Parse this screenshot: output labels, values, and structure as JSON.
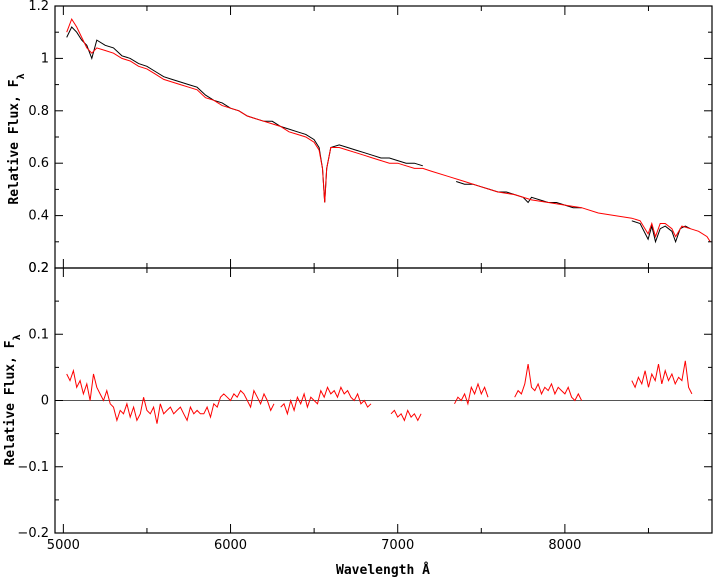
{
  "chart_data": [
    {
      "type": "line",
      "panel": "top",
      "ylabel": "Relative Flux, F",
      "ylabel_subscript": "λ",
      "xlim": [
        4950,
        8880
      ],
      "ylim": [
        0.2,
        1.2
      ],
      "yticks": [
        0.2,
        0.4,
        0.6,
        0.8,
        1.0,
        1.2
      ],
      "ytick_labels": [
        "0.2",
        "0.4",
        "0.6",
        "0.8",
        "1",
        "1.2"
      ],
      "series": [
        {
          "color": "#000000",
          "x": [
            5020,
            5050,
            5080,
            5110,
            5140,
            5170,
            5200,
            5250,
            5300,
            5350,
            5400,
            5450,
            5500,
            5550,
            5600,
            5650,
            5700,
            5750,
            5800,
            5850,
            5900,
            5950,
            6000,
            6050,
            6100,
            6150,
            6200,
            6250,
            6300,
            6350,
            6400,
            6450,
            6500,
            6530,
            6550,
            6563,
            6575,
            6600,
            6650,
            6700,
            6750,
            6800,
            6850,
            6900,
            6950,
            7000,
            7050,
            7100,
            7150
          ],
          "y": [
            1.08,
            1.12,
            1.1,
            1.07,
            1.05,
            1.0,
            1.07,
            1.05,
            1.04,
            1.01,
            1.0,
            0.98,
            0.97,
            0.95,
            0.93,
            0.92,
            0.91,
            0.9,
            0.89,
            0.86,
            0.84,
            0.83,
            0.81,
            0.8,
            0.78,
            0.77,
            0.76,
            0.76,
            0.74,
            0.73,
            0.72,
            0.71,
            0.69,
            0.66,
            0.58,
            0.45,
            0.58,
            0.66,
            0.67,
            0.66,
            0.65,
            0.64,
            0.63,
            0.62,
            0.62,
            0.61,
            0.6,
            0.6,
            0.59
          ]
        },
        {
          "color": "#000000",
          "x": [
            7350,
            7400,
            7450,
            7500,
            7550,
            7600,
            7650,
            7700,
            7750,
            7780,
            7800,
            7850,
            7900,
            7950,
            8000,
            8050,
            8100
          ],
          "y": [
            0.53,
            0.52,
            0.52,
            0.51,
            0.5,
            0.49,
            0.49,
            0.48,
            0.47,
            0.45,
            0.47,
            0.46,
            0.45,
            0.45,
            0.44,
            0.43,
            0.43
          ]
        },
        {
          "color": "#000000",
          "x": [
            8400,
            8450,
            8498,
            8520,
            8542,
            8570,
            8600,
            8640,
            8662,
            8690,
            8720,
            8750
          ],
          "y": [
            0.38,
            0.37,
            0.31,
            0.36,
            0.3,
            0.35,
            0.36,
            0.34,
            0.3,
            0.35,
            0.36,
            0.35
          ]
        },
        {
          "color": "#ff0000",
          "x": [
            5020,
            5050,
            5080,
            5110,
            5140,
            5170,
            5200,
            5250,
            5300,
            5350,
            5400,
            5450,
            5500,
            5550,
            5600,
            5650,
            5700,
            5750,
            5800,
            5850,
            5900,
            5950,
            6000,
            6050,
            6100,
            6150,
            6200,
            6250,
            6300,
            6350,
            6400,
            6450,
            6500,
            6530,
            6550,
            6563,
            6575,
            6600,
            6650,
            6700,
            6750,
            6800,
            6850,
            6900,
            6950,
            7000,
            7050,
            7100,
            7150,
            7200,
            7300,
            7400,
            7500,
            7600,
            7700,
            7800,
            7900,
            8000,
            8100,
            8200,
            8300,
            8400,
            8450,
            8498,
            8520,
            8542,
            8570,
            8600,
            8640,
            8662,
            8700,
            8750,
            8800,
            8850,
            8870
          ],
          "y": [
            1.1,
            1.15,
            1.12,
            1.08,
            1.04,
            1.02,
            1.04,
            1.03,
            1.02,
            1.0,
            0.99,
            0.97,
            0.96,
            0.94,
            0.92,
            0.91,
            0.9,
            0.89,
            0.88,
            0.85,
            0.84,
            0.82,
            0.81,
            0.8,
            0.78,
            0.77,
            0.76,
            0.75,
            0.74,
            0.72,
            0.71,
            0.7,
            0.68,
            0.65,
            0.58,
            0.45,
            0.58,
            0.66,
            0.66,
            0.65,
            0.64,
            0.63,
            0.62,
            0.61,
            0.6,
            0.6,
            0.59,
            0.58,
            0.58,
            0.57,
            0.55,
            0.53,
            0.51,
            0.49,
            0.48,
            0.46,
            0.45,
            0.44,
            0.43,
            0.41,
            0.4,
            0.39,
            0.38,
            0.33,
            0.37,
            0.32,
            0.37,
            0.37,
            0.35,
            0.32,
            0.36,
            0.35,
            0.34,
            0.32,
            0.3
          ]
        }
      ]
    },
    {
      "type": "line",
      "panel": "bottom",
      "xlabel": "Wavelength Å",
      "ylabel": "Relative Flux, F",
      "ylabel_subscript": "λ",
      "xlim": [
        4950,
        8880
      ],
      "ylim": [
        -0.2,
        0.2
      ],
      "xticks": [
        5000,
        6000,
        7000,
        8000
      ],
      "xtick_labels": [
        "5000",
        "6000",
        "7000",
        "8000"
      ],
      "yticks": [
        -0.2,
        -0.1,
        0,
        0.1,
        0.2
      ],
      "ytick_labels": [
        "−0.2",
        "−0.1",
        "0",
        "0.1",
        "0.2"
      ],
      "reference_line": 0,
      "series": [
        {
          "color": "#ff0000",
          "x": [
            5020,
            5040,
            5060,
            5080,
            5100,
            5120,
            5140,
            5160,
            5180,
            5200,
            5220,
            5240,
            5260,
            5280,
            5300,
            5320,
            5340,
            5360,
            5380,
            5400,
            5420,
            5440,
            5460,
            5480,
            5500,
            5520,
            5540,
            5560,
            5580,
            5600,
            5620,
            5640,
            5660,
            5680,
            5700,
            5720,
            5740,
            5760,
            5780,
            5800,
            5820,
            5840,
            5860,
            5880,
            5900,
            5920,
            5940,
            5960,
            5980,
            6000,
            6020,
            6040,
            6060,
            6080,
            6100,
            6120,
            6140,
            6160,
            6180,
            6200,
            6220,
            6240,
            6260
          ],
          "y": [
            0.04,
            0.03,
            0.045,
            0.02,
            0.03,
            0.01,
            0.025,
            0.0,
            0.04,
            0.02,
            0.01,
            0.0,
            0.015,
            -0.005,
            -0.01,
            -0.03,
            -0.015,
            -0.02,
            -0.005,
            -0.025,
            -0.01,
            -0.03,
            -0.02,
            0.005,
            -0.015,
            -0.02,
            -0.01,
            -0.035,
            -0.005,
            -0.02,
            -0.015,
            -0.01,
            -0.02,
            -0.015,
            -0.01,
            -0.02,
            -0.03,
            -0.01,
            -0.02,
            -0.015,
            -0.02,
            -0.02,
            -0.01,
            -0.025,
            -0.005,
            -0.01,
            0.005,
            0.01,
            0.005,
            0.0,
            0.01,
            0.005,
            0.015,
            0.01,
            0.0,
            -0.01,
            0.015,
            0.005,
            -0.005,
            0.01,
            0.0,
            -0.015,
            -0.005
          ]
        },
        {
          "color": "#ff0000",
          "x": [
            6300,
            6320,
            6340,
            6360,
            6380,
            6400,
            6420,
            6440,
            6460,
            6480,
            6500,
            6520,
            6540,
            6560,
            6580,
            6600,
            6620,
            6640,
            6660,
            6680,
            6700,
            6720,
            6740,
            6760,
            6780,
            6800,
            6820,
            6840
          ],
          "y": [
            -0.01,
            -0.005,
            -0.02,
            0.0,
            -0.015,
            0.005,
            -0.005,
            0.01,
            -0.01,
            0.005,
            0.0,
            -0.005,
            0.015,
            0.005,
            0.02,
            0.01,
            0.015,
            0.005,
            0.02,
            0.01,
            0.015,
            0.005,
            0.0,
            0.01,
            -0.005,
            0.0,
            -0.01,
            -0.005
          ]
        },
        {
          "color": "#ff0000",
          "x": [
            6960,
            6980,
            7000,
            7020,
            7040,
            7060,
            7080,
            7100,
            7120,
            7140
          ],
          "y": [
            -0.02,
            -0.015,
            -0.025,
            -0.02,
            -0.03,
            -0.015,
            -0.025,
            -0.02,
            -0.03,
            -0.02
          ]
        },
        {
          "color": "#ff0000",
          "x": [
            7340,
            7360,
            7380,
            7400,
            7420,
            7440,
            7460,
            7480,
            7500,
            7520,
            7540
          ],
          "y": [
            -0.005,
            0.005,
            0.0,
            0.01,
            -0.005,
            0.02,
            0.01,
            0.025,
            0.01,
            0.02,
            0.005
          ]
        },
        {
          "color": "#ff0000",
          "x": [
            7700,
            7720,
            7740,
            7760,
            7780,
            7800,
            7820,
            7840,
            7860,
            7880,
            7900,
            7920,
            7940,
            7960,
            7980,
            8000,
            8020,
            8040,
            8060,
            8080,
            8100
          ],
          "y": [
            0.005,
            0.015,
            0.01,
            0.025,
            0.055,
            0.02,
            0.015,
            0.025,
            0.01,
            0.02,
            0.015,
            0.025,
            0.01,
            0.02,
            0.015,
            0.01,
            0.02,
            0.005,
            0.0,
            0.01,
            0.0
          ]
        },
        {
          "color": "#ff0000",
          "x": [
            8400,
            8420,
            8440,
            8460,
            8480,
            8500,
            8520,
            8540,
            8560,
            8580,
            8600,
            8620,
            8640,
            8660,
            8680,
            8700,
            8720,
            8740,
            8760
          ],
          "y": [
            0.03,
            0.02,
            0.035,
            0.025,
            0.045,
            0.02,
            0.04,
            0.03,
            0.055,
            0.025,
            0.045,
            0.03,
            0.04,
            0.025,
            0.035,
            0.03,
            0.06,
            0.02,
            0.01
          ]
        }
      ]
    }
  ]
}
